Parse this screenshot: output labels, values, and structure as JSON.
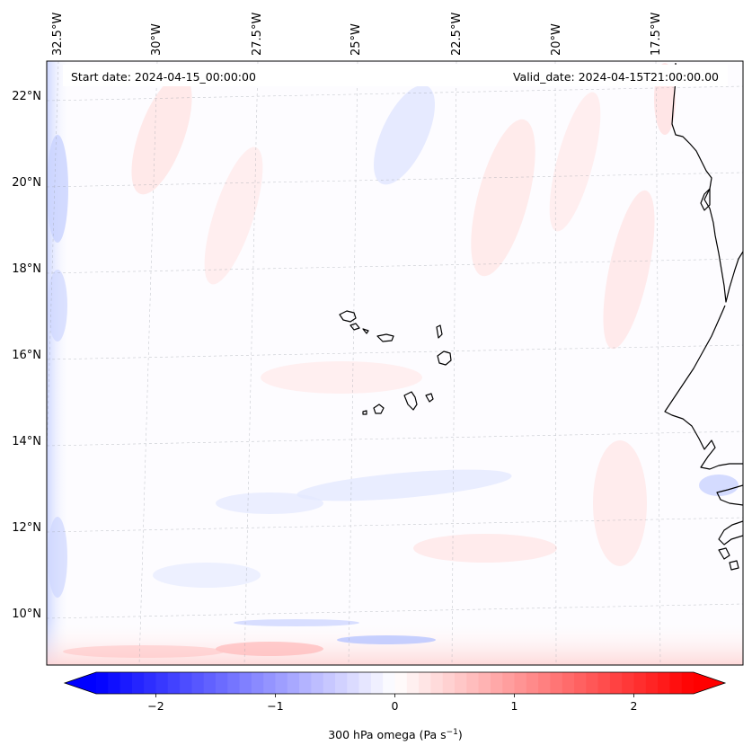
{
  "header": {
    "start_date": "Start date: 2024-04-15_00:00:00",
    "valid_date": "Valid_date: 2024-04-15T21:00:00.00"
  },
  "map": {
    "projection": "lambert-conformal",
    "lon_range": [
      -33.5,
      -15.5
    ],
    "lat_range": [
      8.8,
      22.8
    ],
    "longitude_labels": [
      "32.5°W",
      "30°W",
      "27.5°W",
      "25°W",
      "22.5°W",
      "20°W",
      "17.5°W"
    ],
    "latitude_labels": [
      "22°N",
      "20°N",
      "18°N",
      "16°N",
      "14°N",
      "12°N",
      "10°N"
    ],
    "gridlines": true,
    "coastline_color": "#000000",
    "features": [
      "cape-verde-islands",
      "west-african-coastline"
    ]
  },
  "colorbar": {
    "colormap": "bwr",
    "range": [
      -2.5,
      2.5
    ],
    "extend": "both",
    "tick_values": [
      -2,
      -1,
      0,
      1,
      2
    ],
    "tick_labels": [
      "−2",
      "−1",
      "0",
      "1",
      "2"
    ],
    "label_main": "300 hPa omega (Pa s",
    "label_sup": "−1",
    "label_end": ")",
    "color_low": "#0000ff",
    "color_mid": "#ffffff",
    "color_high": "#ff0000"
  }
}
